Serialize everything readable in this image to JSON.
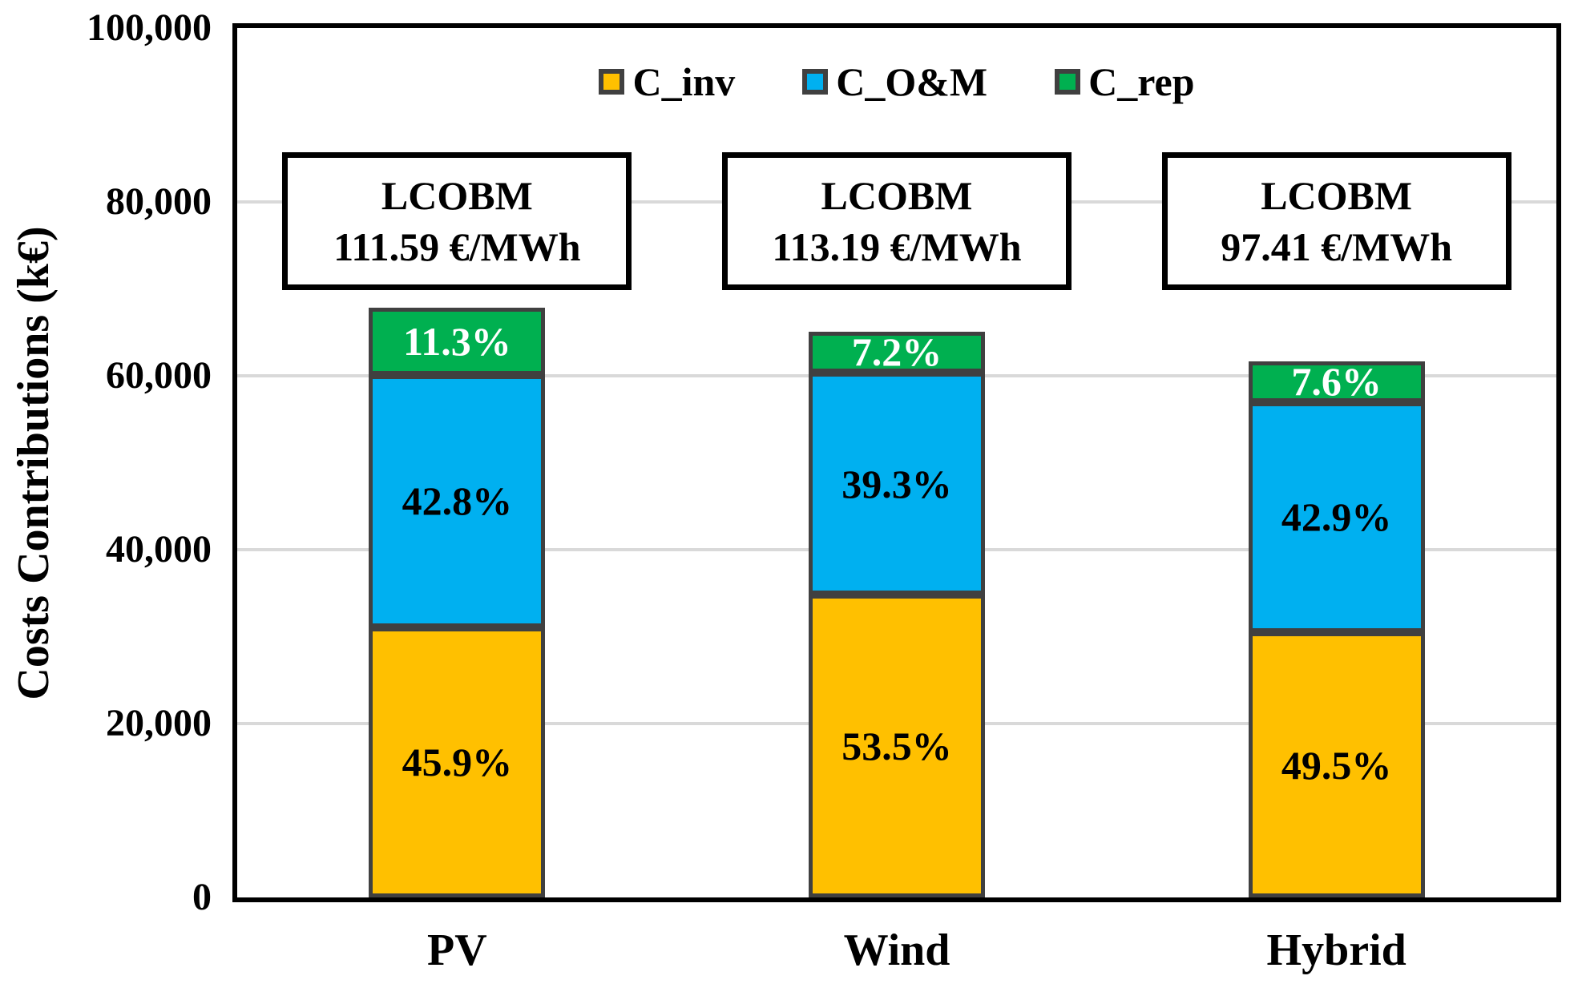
{
  "chart_data": {
    "type": "bar",
    "subtype": "stacked-vertical",
    "title": "",
    "ylabel": "Costs Contributions (k€)",
    "xlabel": "",
    "ylim": [
      0,
      100000
    ],
    "ytick_step": 20000,
    "ytick_labels": [
      "0",
      "20,000",
      "40,000",
      "60,000",
      "80,000",
      "100,000"
    ],
    "grid": "horizontal-light-gray",
    "legend_position": "top-center",
    "categories": [
      "PV",
      "Wind",
      "Hybrid"
    ],
    "series": [
      {
        "name": "C_inv",
        "color": "#FFC000",
        "values": [
          31100,
          34800,
          30500
        ],
        "percent_labels": [
          "45.9%",
          "53.5%",
          "49.5%"
        ],
        "label_color": "#000000"
      },
      {
        "name": "C_O&M",
        "color": "#00B0F0",
        "values": [
          29000,
          25600,
          26500
        ],
        "percent_labels": [
          "42.8%",
          "39.3%",
          "42.9%"
        ],
        "label_color": "#000000"
      },
      {
        "name": "C_rep",
        "color": "#00B050",
        "values": [
          7700,
          4700,
          4700
        ],
        "percent_labels": [
          "11.3%",
          "7.2%",
          "7.6%"
        ],
        "label_color": "#FFFFFF"
      }
    ],
    "bar_totals_k_eur": [
      67800,
      65100,
      61700
    ],
    "bar_border_color": "#404040",
    "annotations": [
      {
        "title": "LCOBM",
        "value": "111.59 €/MWh"
      },
      {
        "title": "LCOBM",
        "value": "113.19 €/MWh"
      },
      {
        "title": "LCOBM",
        "value": "97.41 €/MWh"
      }
    ]
  }
}
